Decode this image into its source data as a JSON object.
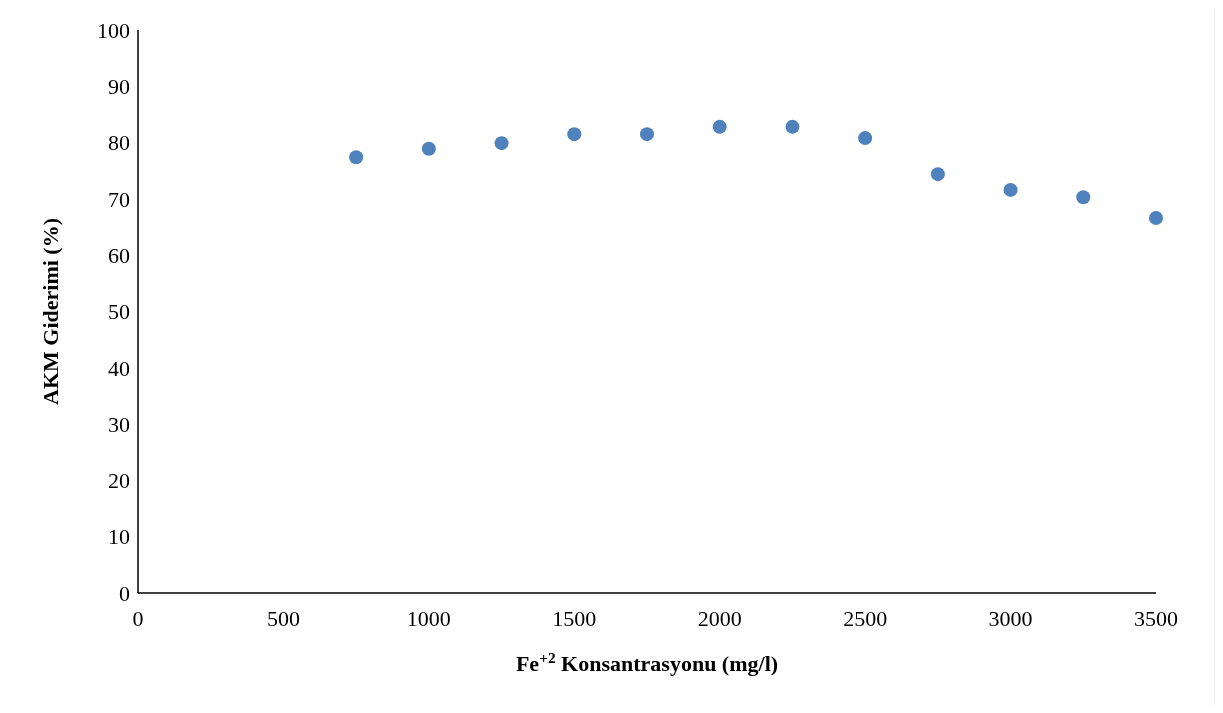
{
  "chart_data": {
    "type": "scatter",
    "xlabel": "Fe$^{+2}$ Konsantrasyonu (mg/l)",
    "ylabel": "AKM Giderimi (%)",
    "x": [
      750,
      1000,
      1250,
      1500,
      1750,
      2000,
      2250,
      2500,
      2750,
      3000,
      3250,
      3500
    ],
    "series": [
      {
        "color": "#4f81bd",
        "values": [
          77.4,
          78.9,
          79.9,
          81.5,
          81.5,
          82.8,
          82.8,
          80.8,
          74.4,
          71.6,
          70.3,
          66.6
        ]
      }
    ],
    "xlim": [
      0,
      3500
    ],
    "xticks": [
      0,
      500,
      1000,
      1500,
      2000,
      2500,
      3000,
      3500
    ],
    "ylim": [
      0,
      100
    ],
    "yticks": [
      0,
      10,
      20,
      30,
      40,
      50,
      60,
      70,
      80,
      90,
      100
    ],
    "marker": "circle"
  }
}
